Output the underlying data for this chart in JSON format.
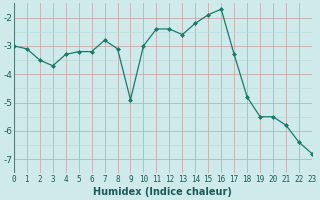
{
  "x": [
    0,
    1,
    2,
    3,
    4,
    5,
    6,
    7,
    8,
    9,
    10,
    11,
    12,
    13,
    14,
    15,
    16,
    17,
    18,
    19,
    20,
    21,
    22,
    23
  ],
  "y": [
    -3.0,
    -3.1,
    -3.5,
    -3.7,
    -3.3,
    -3.2,
    -3.2,
    -2.8,
    -3.1,
    -4.9,
    -3.0,
    -2.4,
    -2.4,
    -2.6,
    -2.2,
    -1.9,
    -1.7,
    -3.3,
    -4.8,
    -5.5,
    -5.5,
    -5.8,
    -6.4,
    -6.8
  ],
  "xlabel": "Humidex (Indice chaleur)",
  "bg_color": "#ceeaea",
  "grid_color_major": "#c8a0a0",
  "grid_color_minor": "#b8d8d8",
  "line_color": "#1a7a6a",
  "marker_color": "#1a7a6a",
  "xlim": [
    0,
    23
  ],
  "ylim": [
    -7.5,
    -1.5
  ],
  "yticks": [
    -7,
    -6,
    -5,
    -4,
    -3,
    -2
  ],
  "xticks": [
    0,
    1,
    2,
    3,
    4,
    5,
    6,
    7,
    8,
    9,
    10,
    11,
    12,
    13,
    14,
    15,
    16,
    17,
    18,
    19,
    20,
    21,
    22,
    23
  ],
  "xtick_labels": [
    "0",
    "1",
    "2",
    "3",
    "4",
    "5",
    "6",
    "7",
    "8",
    "9",
    "10",
    "11",
    "12",
    "13",
    "14",
    "15",
    "16",
    "17",
    "18",
    "19",
    "20",
    "21",
    "22",
    "23"
  ],
  "tick_fontsize": 5.5,
  "xlabel_fontsize": 7,
  "ytick_fontsize": 6.5
}
